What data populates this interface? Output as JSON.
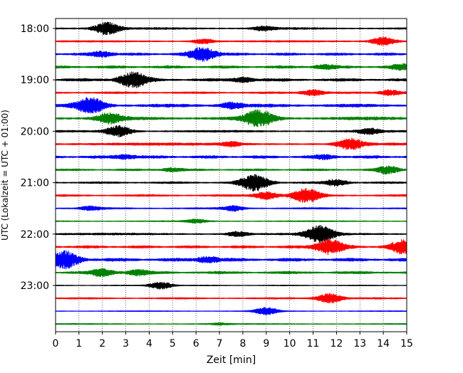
{
  "chart_data": {
    "type": "line",
    "title": "",
    "xlabel": "Zeit  [min]",
    "ylabel": "UTC (Lokalzeit = UTC + 01:00)",
    "xlim": [
      0,
      15
    ],
    "x_ticks": [
      "0",
      "1",
      "2",
      "3",
      "4",
      "5",
      "6",
      "7",
      "8",
      "9",
      "10",
      "11",
      "12",
      "13",
      "14",
      "15"
    ],
    "y_ticks": [
      "18:00",
      "19:00",
      "20:00",
      "21:00",
      "22:00",
      "23:00"
    ],
    "grid": "vertical dotted lines at each minute",
    "colors": [
      "#000000",
      "#ff0000",
      "#0000ff",
      "#008000"
    ],
    "trace_interval_min": 15,
    "series": [
      {
        "name": "18:00",
        "color": "#000000",
        "base": 0.15,
        "events": [
          {
            "t": 2.2,
            "amp": 1.0
          },
          {
            "t": 8.9,
            "amp": 0.35
          }
        ]
      },
      {
        "name": "18:15",
        "color": "#ff0000",
        "base": 0.12,
        "events": [
          {
            "t": 14.0,
            "amp": 0.7
          },
          {
            "t": 6.3,
            "amp": 0.4
          }
        ]
      },
      {
        "name": "18:30",
        "color": "#0000ff",
        "base": 0.2,
        "events": [
          {
            "t": 6.3,
            "amp": 1.1
          },
          {
            "t": 2.0,
            "amp": 0.45
          }
        ]
      },
      {
        "name": "18:45",
        "color": "#008000",
        "base": 0.2,
        "events": [
          {
            "t": 14.8,
            "amp": 0.4
          },
          {
            "t": 11.5,
            "amp": 0.35
          }
        ]
      },
      {
        "name": "19:00",
        "color": "#000000",
        "base": 0.22,
        "events": [
          {
            "t": 3.3,
            "amp": 1.2
          },
          {
            "t": 8.0,
            "amp": 0.4
          }
        ]
      },
      {
        "name": "19:15",
        "color": "#ff0000",
        "base": 0.15,
        "events": [
          {
            "t": 11.0,
            "amp": 0.5
          },
          {
            "t": 14.3,
            "amp": 0.45
          }
        ]
      },
      {
        "name": "19:30",
        "color": "#0000ff",
        "base": 0.25,
        "events": [
          {
            "t": 1.5,
            "amp": 1.2
          },
          {
            "t": 7.5,
            "amp": 0.5
          }
        ]
      },
      {
        "name": "19:45",
        "color": "#008000",
        "base": 0.25,
        "events": [
          {
            "t": 8.7,
            "amp": 1.3
          },
          {
            "t": 2.3,
            "amp": 0.8
          }
        ]
      },
      {
        "name": "20:00",
        "color": "#000000",
        "base": 0.15,
        "events": [
          {
            "t": 2.7,
            "amp": 0.9
          },
          {
            "t": 13.4,
            "amp": 0.45
          }
        ]
      },
      {
        "name": "20:15",
        "color": "#ff0000",
        "base": 0.2,
        "events": [
          {
            "t": 12.6,
            "amp": 0.9
          },
          {
            "t": 7.5,
            "amp": 0.35
          }
        ]
      },
      {
        "name": "20:30",
        "color": "#0000ff",
        "base": 0.22,
        "events": [
          {
            "t": 3.0,
            "amp": 0.35
          },
          {
            "t": 11.5,
            "amp": 0.3
          }
        ]
      },
      {
        "name": "20:45",
        "color": "#008000",
        "base": 0.15,
        "events": [
          {
            "t": 14.2,
            "amp": 0.6
          },
          {
            "t": 5.0,
            "amp": 0.3
          }
        ]
      },
      {
        "name": "21:00",
        "color": "#000000",
        "base": 0.15,
        "events": [
          {
            "t": 8.5,
            "amp": 1.3
          },
          {
            "t": 12.0,
            "amp": 0.5
          }
        ]
      },
      {
        "name": "21:15",
        "color": "#ff0000",
        "base": 0.15,
        "events": [
          {
            "t": 10.7,
            "amp": 1.1
          },
          {
            "t": 9.0,
            "amp": 0.6
          }
        ]
      },
      {
        "name": "21:30",
        "color": "#0000ff",
        "base": 0.12,
        "events": [
          {
            "t": 7.6,
            "amp": 0.4
          },
          {
            "t": 1.5,
            "amp": 0.3
          }
        ]
      },
      {
        "name": "21:45",
        "color": "#008000",
        "base": 0.08,
        "events": [
          {
            "t": 6.0,
            "amp": 0.3
          }
        ]
      },
      {
        "name": "22:00",
        "color": "#000000",
        "base": 0.15,
        "events": [
          {
            "t": 11.3,
            "amp": 1.3
          },
          {
            "t": 7.8,
            "amp": 0.4
          }
        ]
      },
      {
        "name": "22:15",
        "color": "#ff0000",
        "base": 0.2,
        "events": [
          {
            "t": 11.7,
            "amp": 1.2
          },
          {
            "t": 14.9,
            "amp": 1.1
          }
        ]
      },
      {
        "name": "22:30",
        "color": "#0000ff",
        "base": 0.25,
        "events": [
          {
            "t": 0.4,
            "amp": 1.3
          },
          {
            "t": 6.5,
            "amp": 0.5
          }
        ]
      },
      {
        "name": "22:45",
        "color": "#008000",
        "base": 0.2,
        "events": [
          {
            "t": 2.0,
            "amp": 0.55
          },
          {
            "t": 3.5,
            "amp": 0.45
          }
        ]
      },
      {
        "name": "23:00",
        "color": "#000000",
        "base": 0.06,
        "events": [
          {
            "t": 4.5,
            "amp": 0.6
          }
        ]
      },
      {
        "name": "23:15",
        "color": "#ff0000",
        "base": 0.12,
        "events": [
          {
            "t": 11.7,
            "amp": 0.8
          }
        ]
      },
      {
        "name": "23:30",
        "color": "#0000ff",
        "base": 0.06,
        "events": [
          {
            "t": 9.0,
            "amp": 0.6
          }
        ]
      },
      {
        "name": "23:45",
        "color": "#008000",
        "base": 0.08,
        "events": [
          {
            "t": 7.0,
            "amp": 0.15
          }
        ]
      }
    ]
  }
}
